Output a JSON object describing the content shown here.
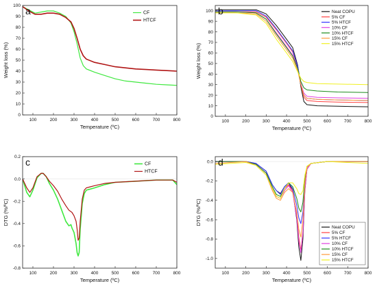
{
  "colors": {
    "cf": "#3fe83f",
    "htcf": "#b01414",
    "neat": "#111111",
    "cf5": "#ff4040",
    "htcf5": "#3333ff",
    "cf10": "#e040e0",
    "htcf10": "#1a8a1a",
    "cf15": "#ff9a3a",
    "htcf15": "#f0f020"
  },
  "chart_data": [
    {
      "panel": "a",
      "type": "line",
      "xlabel": "Temperature (ºC)",
      "ylabel": "Weight loss (%)",
      "xlim": [
        50,
        800
      ],
      "ylim": [
        0,
        100
      ],
      "xticks": [
        100,
        200,
        300,
        400,
        500,
        600,
        700,
        800
      ],
      "yticks": [
        0,
        10,
        20,
        30,
        40,
        50,
        60,
        70,
        80,
        90,
        100
      ],
      "legend": "top-right",
      "series": [
        {
          "name": "CF",
          "color": "#3fe83f",
          "width": 1.2,
          "x": [
            50,
            80,
            110,
            140,
            170,
            200,
            230,
            260,
            285,
            300,
            315,
            330,
            345,
            360,
            400,
            450,
            500,
            550,
            600,
            650,
            700,
            750,
            800
          ],
          "y": [
            99,
            96,
            93,
            94,
            95,
            95,
            93,
            90,
            84,
            76,
            65,
            52,
            45,
            42,
            39,
            36,
            33,
            31,
            30,
            29,
            28,
            27.5,
            27
          ]
        },
        {
          "name": "HTCF",
          "color": "#b01414",
          "width": 1.6,
          "x": [
            50,
            80,
            110,
            140,
            170,
            200,
            230,
            260,
            285,
            300,
            315,
            330,
            345,
            360,
            400,
            450,
            500,
            550,
            600,
            650,
            700,
            750,
            800
          ],
          "y": [
            99,
            95,
            92,
            92,
            93,
            93,
            92,
            89,
            85,
            79,
            70,
            60,
            54,
            51,
            48,
            46,
            44,
            43,
            42,
            41.5,
            41,
            40.5,
            40
          ]
        }
      ]
    },
    {
      "panel": "b",
      "type": "line",
      "xlabel": "Temperature (ºC)",
      "ylabel": "Weight loss (%)",
      "xlim": [
        50,
        800
      ],
      "ylim": [
        0,
        105
      ],
      "xticks": [
        100,
        200,
        300,
        400,
        500,
        600,
        700,
        800
      ],
      "yticks": [
        0,
        10,
        20,
        30,
        40,
        50,
        60,
        70,
        80,
        90,
        100
      ],
      "legend": "top-right",
      "series": [
        {
          "name": "Neat COPU",
          "color": "#111111",
          "x": [
            50,
            150,
            250,
            300,
            350,
            400,
            430,
            455,
            470,
            485,
            500,
            550,
            650,
            800
          ],
          "y": [
            101,
            101,
            101,
            97,
            86,
            73,
            65,
            48,
            28,
            14,
            11,
            10,
            9.5,
            9
          ]
        },
        {
          "name": "5% CF",
          "color": "#ff4040",
          "x": [
            50,
            150,
            250,
            300,
            350,
            400,
            430,
            455,
            470,
            485,
            500,
            550,
            650,
            800
          ],
          "y": [
            99,
            99,
            99,
            94,
            82,
            69,
            61,
            46,
            30,
            18,
            15,
            14,
            13.5,
            13
          ]
        },
        {
          "name": "5% HTCF",
          "color": "#3333ff",
          "x": [
            50,
            150,
            250,
            300,
            350,
            400,
            430,
            455,
            470,
            485,
            500,
            550,
            650,
            800
          ],
          "y": [
            100,
            100,
            100,
            95,
            83,
            70,
            62,
            47,
            31,
            20,
            17,
            16,
            15.5,
            15
          ]
        },
        {
          "name": "10% CF",
          "color": "#e040e0",
          "x": [
            50,
            150,
            250,
            300,
            350,
            400,
            430,
            455,
            470,
            485,
            500,
            550,
            650,
            800
          ],
          "y": [
            99,
            99,
            98,
            92,
            79,
            66,
            58,
            45,
            31,
            22,
            19,
            18,
            17.5,
            17
          ]
        },
        {
          "name": "10% HTCF",
          "color": "#1a8a1a",
          "x": [
            50,
            150,
            250,
            300,
            350,
            400,
            430,
            455,
            470,
            485,
            500,
            550,
            650,
            800
          ],
          "y": [
            99,
            99,
            98,
            92,
            78,
            65,
            57,
            45,
            33,
            27,
            25,
            24,
            23,
            22.5
          ]
        },
        {
          "name": "15% CF",
          "color": "#ff9a3a",
          "x": [
            50,
            150,
            250,
            300,
            350,
            400,
            430,
            455,
            470,
            485,
            500,
            550,
            650,
            800
          ],
          "y": [
            98,
            98,
            97,
            90,
            76,
            63,
            55,
            43,
            30,
            20,
            17,
            16,
            15.5,
            15
          ]
        },
        {
          "name": "15% HTCF",
          "color": "#f0f020",
          "x": [
            50,
            150,
            250,
            300,
            350,
            400,
            430,
            455,
            470,
            485,
            500,
            550,
            650,
            800
          ],
          "y": [
            98,
            98,
            96,
            88,
            73,
            60,
            52,
            42,
            36,
            33,
            32,
            31,
            30.5,
            30
          ]
        }
      ]
    },
    {
      "panel": "c",
      "type": "line",
      "xlabel": "Temperature (ºC)",
      "ylabel": "DTG (%/ºC)",
      "xlim": [
        50,
        800
      ],
      "ylim": [
        -0.8,
        0.2
      ],
      "xticks": [
        100,
        200,
        300,
        400,
        500,
        600,
        700,
        800
      ],
      "yticks": [
        -0.8,
        -0.6,
        -0.4,
        -0.2,
        0.0,
        0.2
      ],
      "legend": "top-right",
      "series": [
        {
          "name": "CF",
          "color": "#3fe83f",
          "width": 1.6,
          "x": [
            50,
            70,
            85,
            100,
            120,
            140,
            150,
            165,
            180,
            200,
            220,
            240,
            260,
            275,
            285,
            290,
            300,
            310,
            315,
            320,
            325,
            330,
            340,
            350,
            360,
            380,
            400,
            450,
            500,
            600,
            700,
            780,
            800
          ],
          "y": [
            0.0,
            -0.12,
            -0.16,
            -0.1,
            0.01,
            0.05,
            0.05,
            0.02,
            -0.04,
            -0.1,
            -0.18,
            -0.28,
            -0.38,
            -0.42,
            -0.41,
            -0.44,
            -0.48,
            -0.58,
            -0.66,
            -0.69,
            -0.66,
            -0.45,
            -0.22,
            -0.13,
            -0.1,
            -0.09,
            -0.08,
            -0.05,
            -0.03,
            -0.02,
            -0.01,
            -0.01,
            -0.05
          ]
        },
        {
          "name": "HTCF",
          "color": "#b01414",
          "width": 1.2,
          "x": [
            50,
            70,
            85,
            100,
            120,
            140,
            150,
            165,
            180,
            200,
            220,
            240,
            260,
            275,
            290,
            300,
            310,
            315,
            320,
            325,
            330,
            340,
            350,
            360,
            380,
            400,
            450,
            500,
            600,
            700,
            780,
            800
          ],
          "y": [
            0.0,
            -0.08,
            -0.12,
            -0.08,
            0.02,
            0.05,
            0.05,
            0.02,
            -0.02,
            -0.06,
            -0.11,
            -0.18,
            -0.24,
            -0.28,
            -0.3,
            -0.33,
            -0.38,
            -0.45,
            -0.55,
            -0.53,
            -0.38,
            -0.18,
            -0.1,
            -0.08,
            -0.07,
            -0.06,
            -0.04,
            -0.03,
            -0.02,
            -0.01,
            -0.01,
            -0.03
          ]
        }
      ]
    },
    {
      "panel": "d",
      "type": "line",
      "xlabel": "Temperature (ºC)",
      "ylabel": "DTG (%/ºC)",
      "xlim": [
        50,
        800
      ],
      "ylim": [
        -1.1,
        0.05
      ],
      "xticks": [
        100,
        200,
        300,
        400,
        500,
        600,
        700,
        800
      ],
      "yticks": [
        -1.0,
        -0.8,
        -0.6,
        -0.4,
        -0.2,
        0.0
      ],
      "legend": "bottom-right",
      "series": [
        {
          "name": "Neat COPU",
          "color": "#111111",
          "x": [
            50,
            200,
            250,
            300,
            330,
            350,
            370,
            390,
            410,
            430,
            450,
            460,
            470,
            480,
            490,
            500,
            520,
            600,
            800
          ],
          "y": [
            0.0,
            0.0,
            -0.02,
            -0.1,
            -0.24,
            -0.3,
            -0.33,
            -0.26,
            -0.22,
            -0.3,
            -0.6,
            -0.88,
            -1.02,
            -0.8,
            -0.3,
            -0.08,
            -0.02,
            0.0,
            0.0
          ]
        },
        {
          "name": "5% CF",
          "color": "#ff4040",
          "x": [
            50,
            200,
            250,
            300,
            330,
            350,
            370,
            390,
            410,
            430,
            450,
            460,
            470,
            480,
            490,
            500,
            520,
            600,
            800
          ],
          "y": [
            0.0,
            0.0,
            -0.03,
            -0.12,
            -0.28,
            -0.36,
            -0.38,
            -0.28,
            -0.24,
            -0.3,
            -0.55,
            -0.78,
            -0.92,
            -0.72,
            -0.28,
            -0.08,
            -0.02,
            0.0,
            0.0
          ]
        },
        {
          "name": "5% HTCF",
          "color": "#3333ff",
          "x": [
            50,
            200,
            250,
            300,
            330,
            350,
            370,
            390,
            410,
            430,
            450,
            460,
            470,
            480,
            490,
            500,
            520,
            600,
            800
          ],
          "y": [
            0.0,
            0.0,
            -0.02,
            -0.1,
            -0.24,
            -0.3,
            -0.34,
            -0.26,
            -0.22,
            -0.28,
            -0.45,
            -0.58,
            -0.64,
            -0.52,
            -0.22,
            -0.06,
            -0.02,
            0.0,
            0.0
          ]
        },
        {
          "name": "10% CF",
          "color": "#e040e0",
          "x": [
            50,
            200,
            250,
            300,
            330,
            350,
            370,
            390,
            410,
            430,
            450,
            460,
            470,
            480,
            490,
            500,
            520,
            600,
            800
          ],
          "y": [
            0.0,
            0.0,
            -0.03,
            -0.12,
            -0.28,
            -0.36,
            -0.38,
            -0.3,
            -0.25,
            -0.32,
            -0.58,
            -0.82,
            -0.94,
            -0.74,
            -0.28,
            -0.08,
            -0.02,
            0.0,
            0.0
          ]
        },
        {
          "name": "10% HTCF",
          "color": "#1a8a1a",
          "x": [
            50,
            200,
            250,
            300,
            330,
            350,
            370,
            390,
            410,
            430,
            450,
            460,
            470,
            480,
            490,
            500,
            520,
            600,
            800
          ],
          "y": [
            0.0,
            0.0,
            -0.03,
            -0.12,
            -0.26,
            -0.34,
            -0.36,
            -0.28,
            -0.22,
            -0.26,
            -0.38,
            -0.48,
            -0.52,
            -0.42,
            -0.18,
            -0.05,
            -0.02,
            0.0,
            0.0
          ]
        },
        {
          "name": "15% CF",
          "color": "#ff9a3a",
          "x": [
            50,
            200,
            250,
            300,
            330,
            350,
            370,
            390,
            410,
            430,
            450,
            460,
            470,
            480,
            490,
            500,
            520,
            600,
            800
          ],
          "y": [
            -0.02,
            0.0,
            -0.04,
            -0.14,
            -0.3,
            -0.38,
            -0.4,
            -0.32,
            -0.28,
            -0.32,
            -0.52,
            -0.7,
            -0.78,
            -0.6,
            -0.22,
            -0.06,
            -0.02,
            0.0,
            0.0
          ]
        },
        {
          "name": "15% HTCF",
          "color": "#f0f020",
          "x": [
            50,
            200,
            250,
            300,
            330,
            350,
            370,
            390,
            410,
            430,
            450,
            460,
            470,
            480,
            490,
            500,
            520,
            600,
            800
          ],
          "y": [
            -0.03,
            -0.01,
            -0.04,
            -0.14,
            -0.28,
            -0.36,
            -0.38,
            -0.28,
            -0.22,
            -0.22,
            -0.28,
            -0.33,
            -0.34,
            -0.3,
            -0.14,
            -0.05,
            -0.02,
            0.0,
            -0.02
          ]
        }
      ]
    }
  ]
}
